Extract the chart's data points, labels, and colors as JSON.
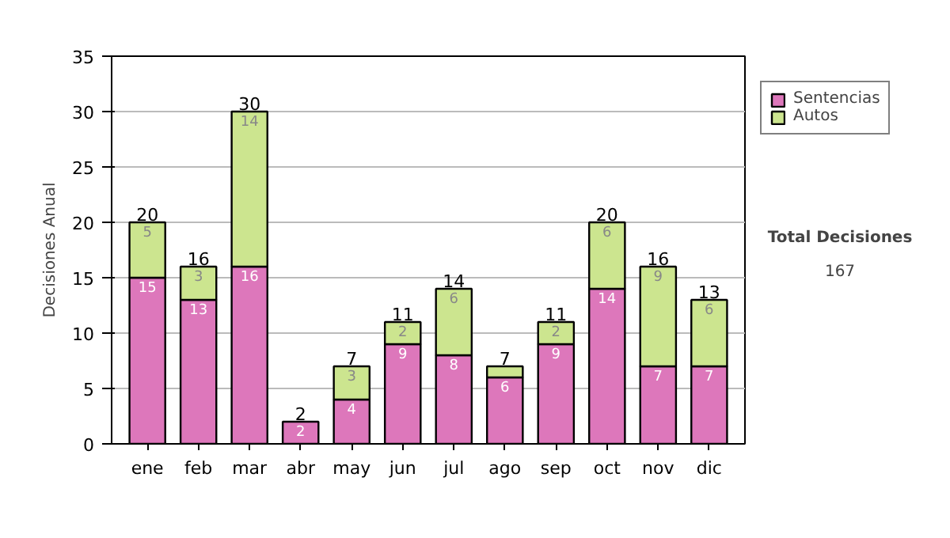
{
  "chart_data": {
    "type": "bar",
    "stacked": true,
    "ylabel": "Decisiones Anual",
    "categories": [
      "ene",
      "feb",
      "mar",
      "abr",
      "may",
      "jun",
      "jul",
      "ago",
      "sep",
      "oct",
      "nov",
      "dic"
    ],
    "series": [
      {
        "name": "Sentencias",
        "color": "#dd77bb",
        "values": [
          15,
          13,
          16,
          2,
          4,
          9,
          8,
          6,
          9,
          14,
          7,
          7
        ],
        "value_labels": [
          "15",
          "13",
          "16",
          "2",
          "4",
          "9",
          "8",
          "6",
          "9",
          "14",
          "7",
          "7"
        ]
      },
      {
        "name": "Autos",
        "color": "#cce58f",
        "values": [
          5,
          3,
          14,
          0,
          3,
          2,
          6,
          1,
          2,
          6,
          9,
          6
        ],
        "value_labels": [
          "5",
          "3",
          "14",
          null,
          "3",
          "2",
          "6",
          null,
          "2",
          "6",
          "9",
          "6"
        ]
      }
    ],
    "totals": [
      "20",
      "16",
      "30",
      "2",
      "7",
      "11",
      "14",
      "7",
      "11",
      "20",
      "16",
      "13"
    ],
    "ylim": [
      0,
      35
    ],
    "yticks": [
      0,
      5,
      10,
      15,
      20,
      25,
      30,
      35
    ],
    "grid": "y",
    "legend": "right",
    "annotations": [
      "Total Decisiones",
      "167"
    ]
  }
}
